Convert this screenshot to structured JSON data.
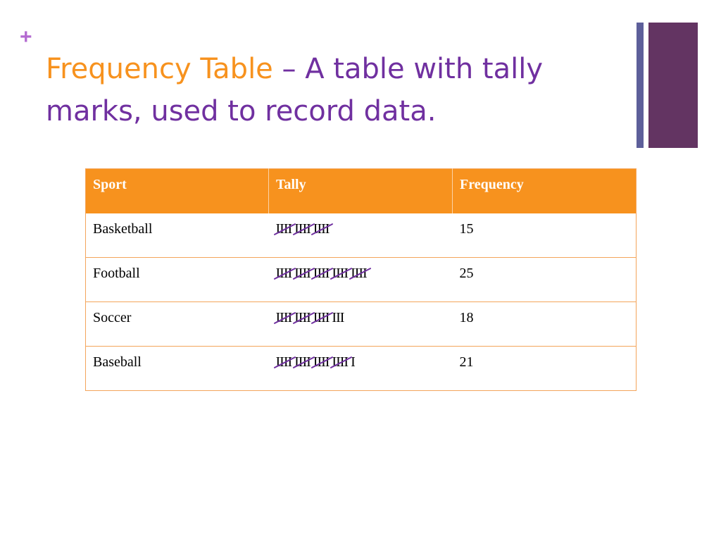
{
  "slide": {
    "bullet_glyph": "+",
    "title_term": "Frequency Table",
    "title_rest": " – A table with tally marks, used to record data."
  },
  "table": {
    "headers": [
      "Sport",
      "Tally",
      "Frequency"
    ],
    "rows": [
      {
        "sport": "Basketball",
        "tally": "IIII IIII IIII",
        "frequency": "15",
        "tally_count": 15
      },
      {
        "sport": "Football",
        "tally": "IIII IIII IIII IIII IIII",
        "frequency": "25",
        "tally_count": 25
      },
      {
        "sport": "Soccer",
        "tally": "IIII IIII IIII III",
        "frequency": "18",
        "tally_count": 18
      },
      {
        "sport": "Baseball",
        "tally": "IIII IIII IIII IIII I",
        "frequency": "21",
        "tally_count": 21
      }
    ]
  },
  "colors": {
    "title_term": "#f7921e",
    "title_text": "#7030a0",
    "header_fill": "#f7921e",
    "header_text": "#ffffff",
    "cross_stroke": "#7030a0",
    "deco_thin": "#5d5f9a",
    "deco_thick": "#633462",
    "plus_mark": "#b36ad0"
  }
}
